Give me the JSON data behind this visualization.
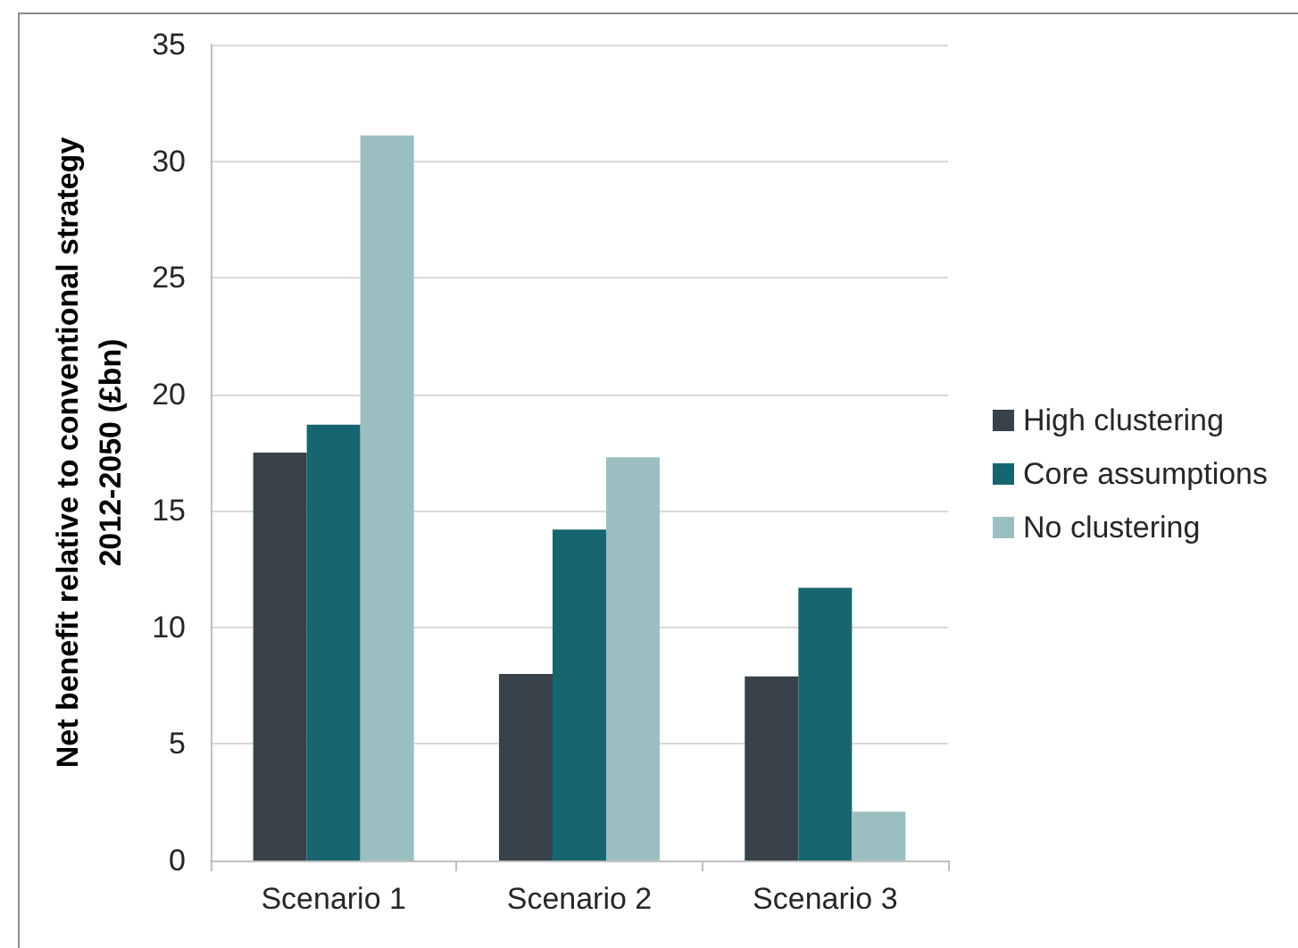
{
  "chart_data": {
    "type": "bar",
    "ylabel": "Net benefit relative to conventional strategy 2012-2050 (£bn)",
    "categories": [
      "Scenario 1",
      "Scenario 2",
      "Scenario 3"
    ],
    "series": [
      {
        "name": "High clustering",
        "color": "#37424a",
        "values": [
          17.5,
          8.0,
          7.9
        ]
      },
      {
        "name": "Core assumptions",
        "color": "#17656e",
        "values": [
          18.7,
          14.2,
          11.7
        ]
      },
      {
        "name": "No clustering",
        "color": "#9bbfc1",
        "values": [
          31.1,
          17.3,
          2.1
        ]
      }
    ],
    "ylim": [
      0,
      35
    ],
    "yticks": [
      0,
      5,
      10,
      15,
      20,
      25,
      30,
      35
    ],
    "grid": "y",
    "legend": "right"
  }
}
